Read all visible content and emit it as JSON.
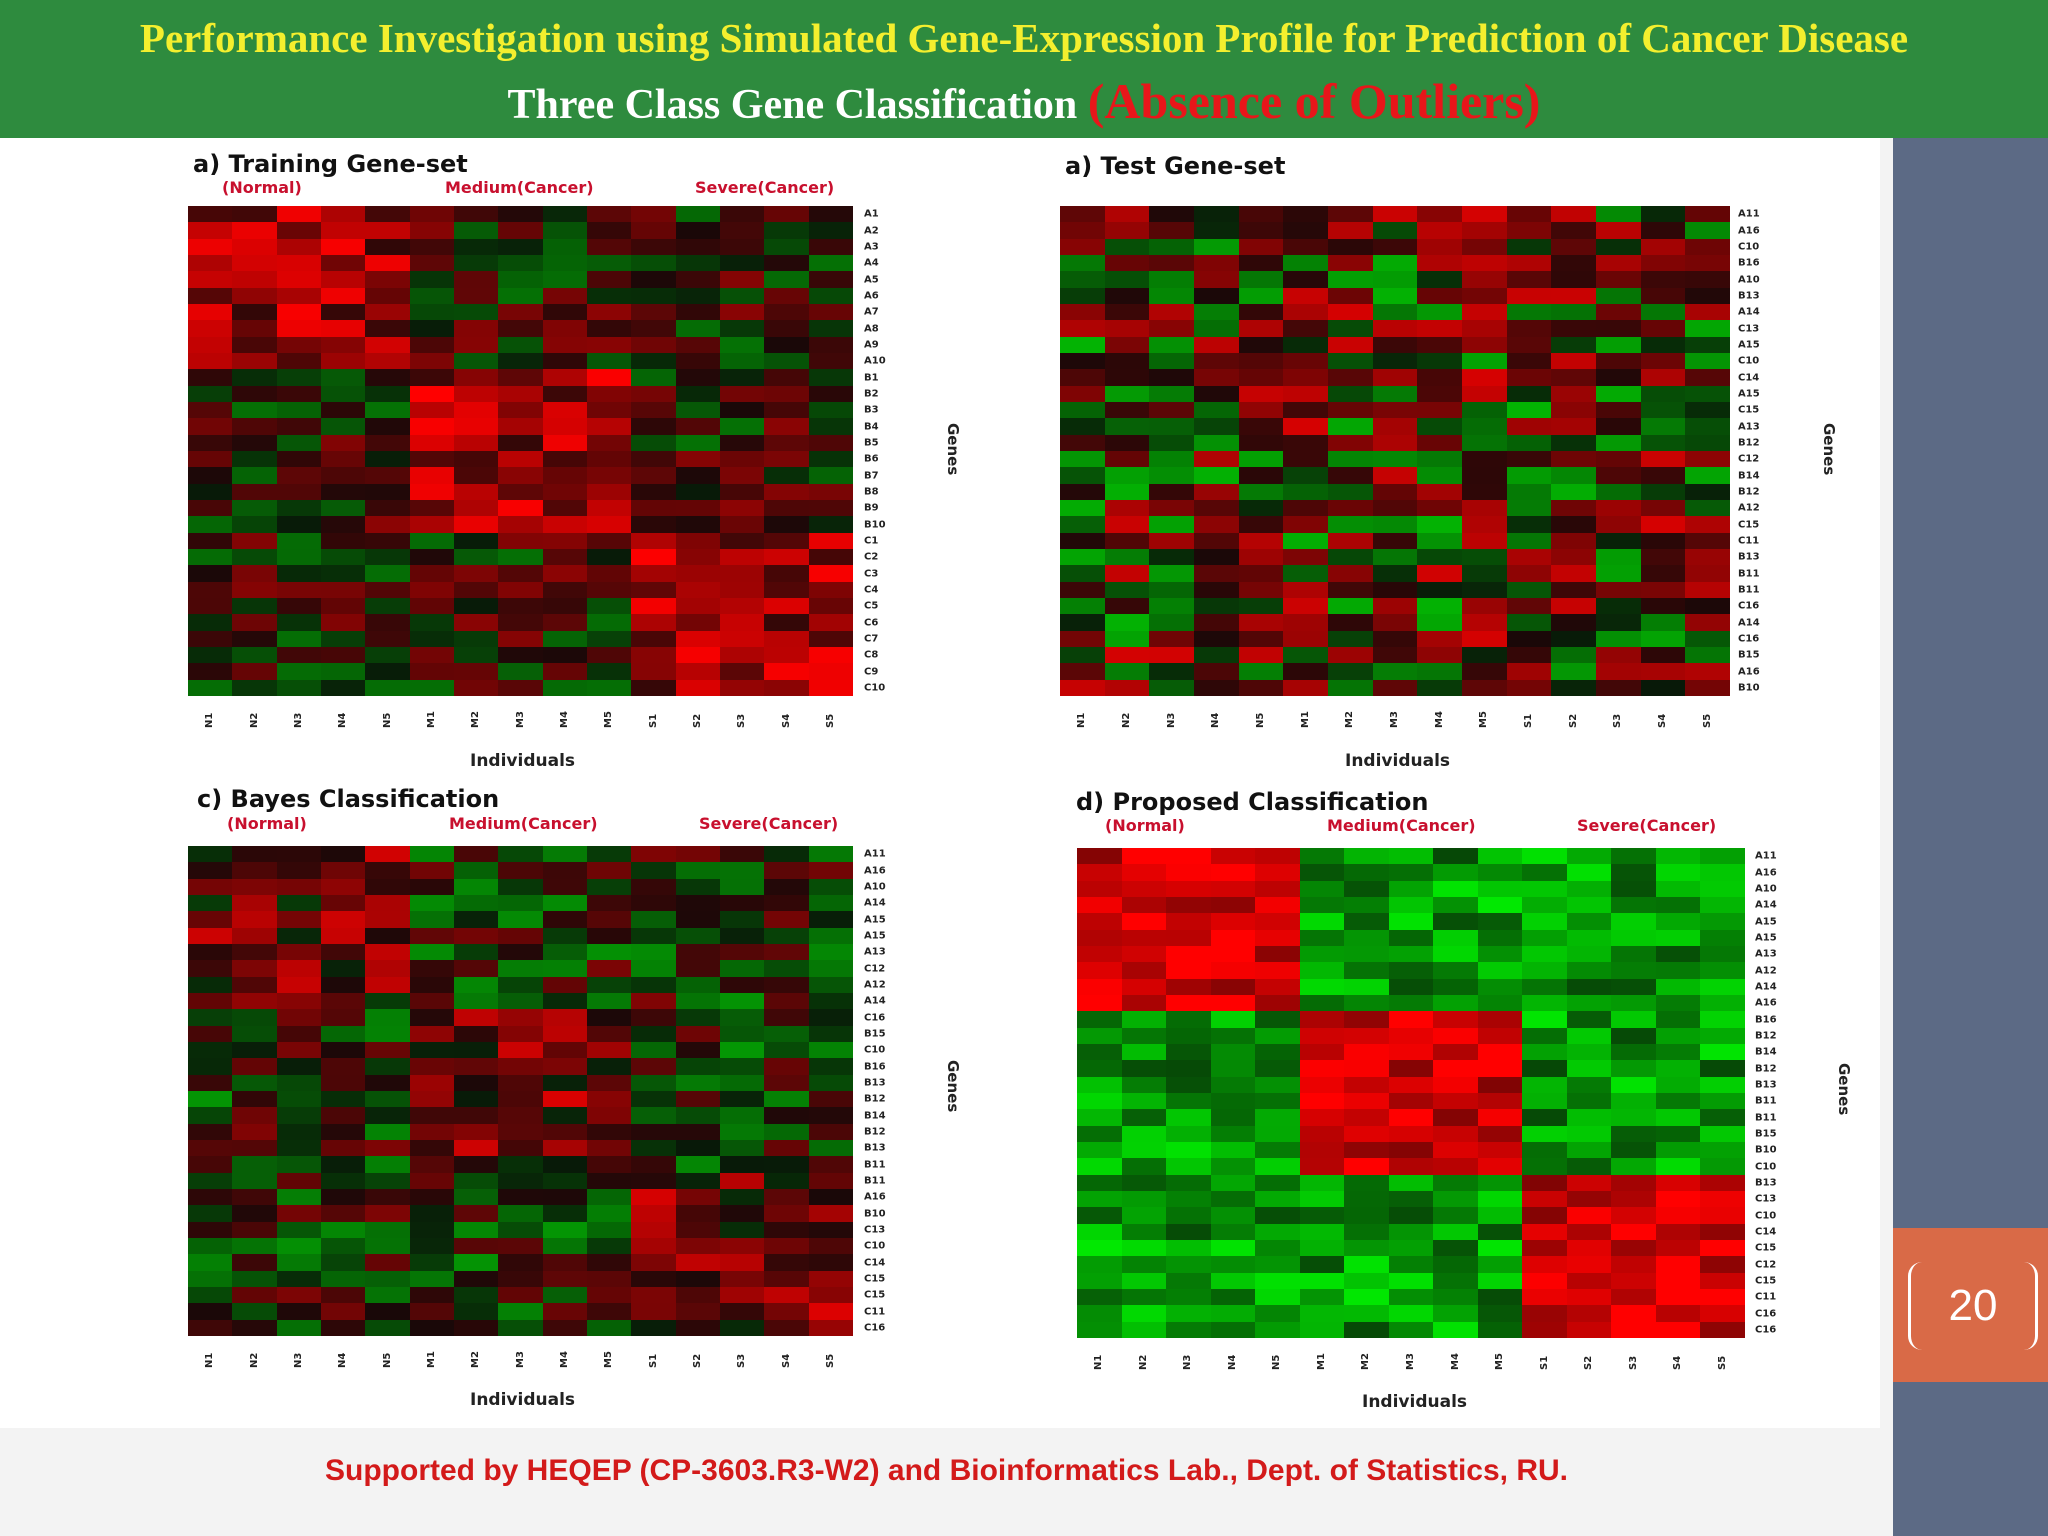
{
  "header": {
    "title_line1": "Performance Investigation using  Simulated Gene-Expression Profile for Prediction of Cancer Disease",
    "title_line2_white": "Three Class Gene Classification ",
    "title_line2_red": "(Absence of Outliers)"
  },
  "page_number": "20",
  "footer": "Supported by HEQEP (CP-3603.R3-W2) and Bioinformatics Lab., Dept. of Statistics, RU.",
  "colors": {
    "header_bg": "#2e8b3e",
    "title_yellow": "#f4ef2e",
    "title_red": "#e8161a",
    "sidebar": "#5c6a85",
    "page_box": "#d96a47",
    "footer_red": "#d31a1a",
    "heat_red": "#ff0000",
    "heat_green": "#00ff00"
  },
  "chart_data": [
    {
      "type": "heatmap",
      "title": "a) Training Gene-set",
      "groups": [
        "(Normal)",
        "Medium(Cancer)",
        "Severe(Cancer)"
      ],
      "xlabel": "Individuals",
      "ylabel": "Genes",
      "x": [
        "N1",
        "N2",
        "N3",
        "N4",
        "N5",
        "M1",
        "M2",
        "M3",
        "M4",
        "M5",
        "S1",
        "S2",
        "S3",
        "S4",
        "S5"
      ],
      "y": [
        "A1",
        "A2",
        "A3",
        "A4",
        "A5",
        "A6",
        "A7",
        "A8",
        "A9",
        "A10",
        "B1",
        "B2",
        "B3",
        "B4",
        "B5",
        "B6",
        "B7",
        "B8",
        "B9",
        "B10",
        "C1",
        "C2",
        "C3",
        "C4",
        "C5",
        "C6",
        "C7",
        "C8",
        "C9",
        "C10"
      ],
      "pattern": "block"
    },
    {
      "type": "heatmap",
      "title": "a) Test Gene-set",
      "groups": [],
      "xlabel": "Individuals",
      "ylabel": "Genes",
      "x": [
        "N1",
        "N2",
        "N3",
        "N4",
        "N5",
        "M1",
        "M2",
        "M3",
        "M4",
        "M5",
        "S1",
        "S2",
        "S3",
        "S4",
        "S5"
      ],
      "y": [
        "A11",
        "A16",
        "C10",
        "B16",
        "A10",
        "B13",
        "A14",
        "C13",
        "A15",
        "C10",
        "C14",
        "A15",
        "C15",
        "A13",
        "B12",
        "C12",
        "B14",
        "B12",
        "A12",
        "C15",
        "C11",
        "B13",
        "B11",
        "B11",
        "C16",
        "A14",
        "C16",
        "B15",
        "A16",
        "B10"
      ],
      "pattern": "random"
    },
    {
      "type": "heatmap",
      "title": "c) Bayes Classification",
      "groups": [
        "(Normal)",
        "Medium(Cancer)",
        "Severe(Cancer)"
      ],
      "xlabel": "Individuals",
      "ylabel": "Genes",
      "x": [
        "N1",
        "N2",
        "N3",
        "N4",
        "N5",
        "M1",
        "M2",
        "M3",
        "M4",
        "M5",
        "S1",
        "S2",
        "S3",
        "S4",
        "S5"
      ],
      "y": [
        "A11",
        "A16",
        "A10",
        "A14",
        "A15",
        "A15",
        "A13",
        "C12",
        "A12",
        "A14",
        "C16",
        "B15",
        "C10",
        "B16",
        "B13",
        "B12",
        "B14",
        "B12",
        "B13",
        "B11",
        "B11",
        "A16",
        "B10",
        "C13",
        "C10",
        "C14",
        "C15",
        "C15",
        "C11",
        "C16"
      ],
      "pattern": "weak-block"
    },
    {
      "type": "heatmap",
      "title": "d) Proposed Classification",
      "groups": [
        "(Normal)",
        "Medium(Cancer)",
        "Severe(Cancer)"
      ],
      "xlabel": "Individuals",
      "ylabel": "Genes",
      "x": [
        "N1",
        "N2",
        "N3",
        "N4",
        "N5",
        "M1",
        "M2",
        "M3",
        "M4",
        "M5",
        "S1",
        "S2",
        "S3",
        "S4",
        "S5"
      ],
      "y": [
        "A11",
        "A16",
        "A10",
        "A14",
        "A15",
        "A15",
        "A13",
        "A12",
        "A14",
        "A16",
        "B16",
        "B12",
        "B14",
        "B12",
        "B13",
        "B11",
        "B11",
        "B15",
        "B10",
        "C10",
        "B13",
        "C13",
        "C10",
        "C14",
        "C15",
        "C12",
        "C15",
        "C11",
        "C16",
        "C16"
      ],
      "pattern": "strong-block"
    }
  ]
}
